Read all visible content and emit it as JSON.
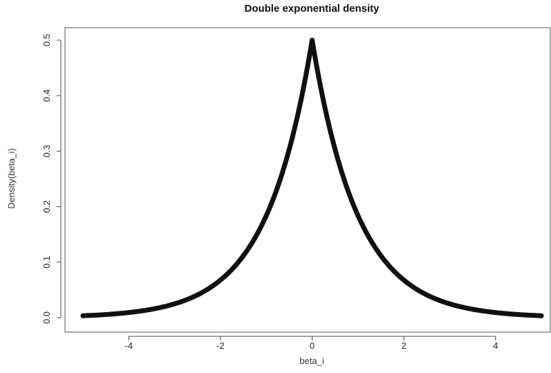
{
  "chart_data": {
    "type": "line",
    "title": "Double exponential density",
    "xlabel": "beta_i",
    "ylabel": "Density(beta_i)",
    "xlim": [
      -5,
      5
    ],
    "ylim": [
      0,
      0.5
    ],
    "xticks": [
      -4,
      -2,
      0,
      2,
      4
    ],
    "xtick_labels": [
      "-4",
      "-2",
      "0",
      "2",
      "4"
    ],
    "yticks": [
      0.0,
      0.1,
      0.2,
      0.3,
      0.4,
      0.5
    ],
    "ytick_labels": [
      "0.0",
      "0.1",
      "0.2",
      "0.3",
      "0.4",
      "0.5"
    ],
    "grid": false,
    "line_color": "#111111",
    "series": [
      {
        "x": [
          -5,
          -4.5,
          -4,
          -3.5,
          -3,
          -2.5,
          -2,
          -1.5,
          -1,
          -0.75,
          -0.5,
          -0.25,
          0,
          0.25,
          0.5,
          0.75,
          1,
          1.5,
          2,
          2.5,
          3,
          3.5,
          4,
          4.5,
          5
        ],
        "y": [
          0.0034,
          0.0056,
          0.0092,
          0.0151,
          0.0249,
          0.041,
          0.0677,
          0.1116,
          0.1839,
          0.2362,
          0.3033,
          0.3894,
          0.5,
          0.3894,
          0.3033,
          0.2362,
          0.1839,
          0.1116,
          0.0677,
          0.041,
          0.0249,
          0.0151,
          0.0092,
          0.0056,
          0.0034
        ]
      }
    ]
  }
}
